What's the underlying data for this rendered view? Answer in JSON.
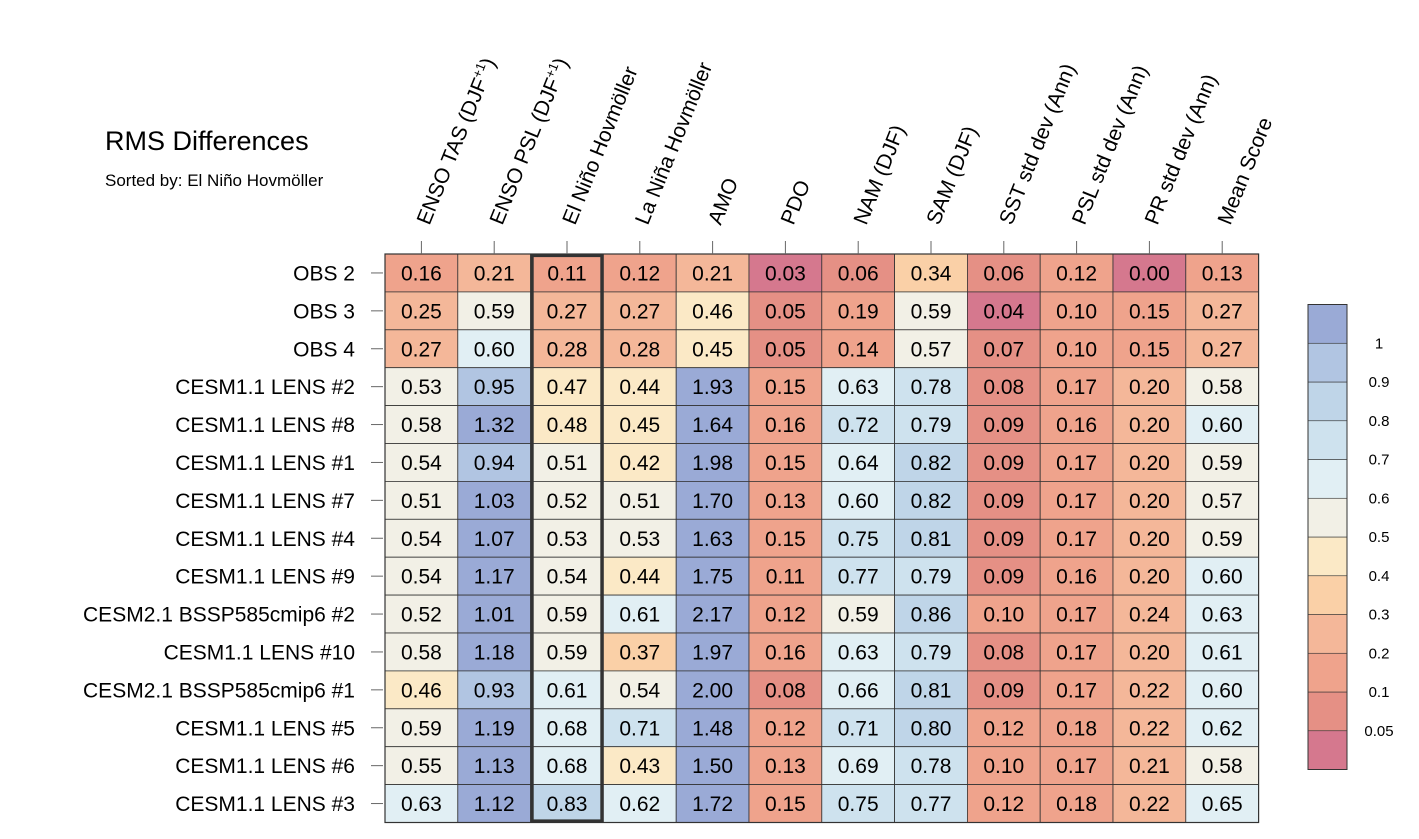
{
  "title": "RMS Differences",
  "subtitle": "Sorted by: El Niño Hovmöller",
  "chart_data": {
    "type": "heatmap",
    "title": "RMS Differences",
    "subtitle": "Sorted by: El Niño Hovmöller",
    "sorted_column_index": 2,
    "columns": [
      {
        "label": "ENSO TAS (DJF",
        "sup": "+1",
        "tail": ")"
      },
      {
        "label": "ENSO PSL (DJF",
        "sup": "+1",
        "tail": ")"
      },
      {
        "label": "El Niño Hovmöller",
        "sup": "",
        "tail": ""
      },
      {
        "label": "La Niña Hovmöller",
        "sup": "",
        "tail": ""
      },
      {
        "label": "AMO",
        "sup": "",
        "tail": ""
      },
      {
        "label": "PDO",
        "sup": "",
        "tail": ""
      },
      {
        "label": "NAM (DJF)",
        "sup": "",
        "tail": ""
      },
      {
        "label": "SAM (DJF)",
        "sup": "",
        "tail": ""
      },
      {
        "label": "SST std dev (Ann)",
        "sup": "",
        "tail": ""
      },
      {
        "label": "PSL std dev (Ann)",
        "sup": "",
        "tail": ""
      },
      {
        "label": "PR std dev (Ann)",
        "sup": "",
        "tail": ""
      },
      {
        "label": "Mean Score",
        "sup": "",
        "tail": ""
      }
    ],
    "rows": [
      {
        "label": "OBS 2",
        "values": [
          "0.16",
          "0.21",
          "0.11",
          "0.12",
          "0.21",
          "0.03",
          "0.06",
          "0.34",
          "0.06",
          "0.12",
          "0.00",
          "0.13"
        ]
      },
      {
        "label": "OBS 3",
        "values": [
          "0.25",
          "0.59",
          "0.27",
          "0.27",
          "0.46",
          "0.05",
          "0.19",
          "0.59",
          "0.04",
          "0.10",
          "0.15",
          "0.27"
        ]
      },
      {
        "label": "OBS 4",
        "values": [
          "0.27",
          "0.60",
          "0.28",
          "0.28",
          "0.45",
          "0.05",
          "0.14",
          "0.57",
          "0.07",
          "0.10",
          "0.15",
          "0.27"
        ]
      },
      {
        "label": "CESM1.1 LENS #2",
        "values": [
          "0.53",
          "0.95",
          "0.47",
          "0.44",
          "1.93",
          "0.15",
          "0.63",
          "0.78",
          "0.08",
          "0.17",
          "0.20",
          "0.58"
        ]
      },
      {
        "label": "CESM1.1 LENS #8",
        "values": [
          "0.58",
          "1.32",
          "0.48",
          "0.45",
          "1.64",
          "0.16",
          "0.72",
          "0.79",
          "0.09",
          "0.16",
          "0.20",
          "0.60"
        ]
      },
      {
        "label": "CESM1.1 LENS #1",
        "values": [
          "0.54",
          "0.94",
          "0.51",
          "0.42",
          "1.98",
          "0.15",
          "0.64",
          "0.82",
          "0.09",
          "0.17",
          "0.20",
          "0.59"
        ]
      },
      {
        "label": "CESM1.1 LENS #7",
        "values": [
          "0.51",
          "1.03",
          "0.52",
          "0.51",
          "1.70",
          "0.13",
          "0.60",
          "0.82",
          "0.09",
          "0.17",
          "0.20",
          "0.57"
        ]
      },
      {
        "label": "CESM1.1 LENS #4",
        "values": [
          "0.54",
          "1.07",
          "0.53",
          "0.53",
          "1.63",
          "0.15",
          "0.75",
          "0.81",
          "0.09",
          "0.17",
          "0.20",
          "0.59"
        ]
      },
      {
        "label": "CESM1.1 LENS #9",
        "values": [
          "0.54",
          "1.17",
          "0.54",
          "0.44",
          "1.75",
          "0.11",
          "0.77",
          "0.79",
          "0.09",
          "0.16",
          "0.20",
          "0.60"
        ]
      },
      {
        "label": "CESM2.1 BSSP585cmip6 #2",
        "values": [
          "0.52",
          "1.01",
          "0.59",
          "0.61",
          "2.17",
          "0.12",
          "0.59",
          "0.86",
          "0.10",
          "0.17",
          "0.24",
          "0.63"
        ]
      },
      {
        "label": "CESM1.1 LENS #10",
        "values": [
          "0.58",
          "1.18",
          "0.59",
          "0.37",
          "1.97",
          "0.16",
          "0.63",
          "0.79",
          "0.08",
          "0.17",
          "0.20",
          "0.61"
        ]
      },
      {
        "label": "CESM2.1 BSSP585cmip6 #1",
        "values": [
          "0.46",
          "0.93",
          "0.61",
          "0.54",
          "2.00",
          "0.08",
          "0.66",
          "0.81",
          "0.09",
          "0.17",
          "0.22",
          "0.60"
        ]
      },
      {
        "label": "CESM1.1 LENS #5",
        "values": [
          "0.59",
          "1.19",
          "0.68",
          "0.71",
          "1.48",
          "0.12",
          "0.71",
          "0.80",
          "0.12",
          "0.18",
          "0.22",
          "0.62"
        ]
      },
      {
        "label": "CESM1.1 LENS #6",
        "values": [
          "0.55",
          "1.13",
          "0.68",
          "0.43",
          "1.50",
          "0.13",
          "0.69",
          "0.78",
          "0.10",
          "0.17",
          "0.21",
          "0.58"
        ]
      },
      {
        "label": "CESM1.1 LENS #3",
        "values": [
          "0.63",
          "1.12",
          "0.83",
          "0.62",
          "1.72",
          "0.15",
          "0.75",
          "0.77",
          "0.12",
          "0.18",
          "0.22",
          "0.65"
        ]
      }
    ],
    "colorbar": {
      "labels": [
        "1",
        "0.9",
        "0.8",
        "0.7",
        "0.6",
        "0.5",
        "0.4",
        "0.3",
        "0.2",
        "0.1",
        "0.05"
      ],
      "thresholds": [
        0.05,
        0.1,
        0.2,
        0.3,
        0.4,
        0.5,
        0.6,
        0.7,
        0.8,
        0.9,
        1
      ],
      "colors": [
        "#d5788e",
        "#e59085",
        "#efa38c",
        "#f4b799",
        "#fad0a7",
        "#fbe9c6",
        "#f2f0e6",
        "#e1eff4",
        "#cee2ee",
        "#bfd5e8",
        "#b1c5e2",
        "#9aaad6"
      ]
    }
  }
}
